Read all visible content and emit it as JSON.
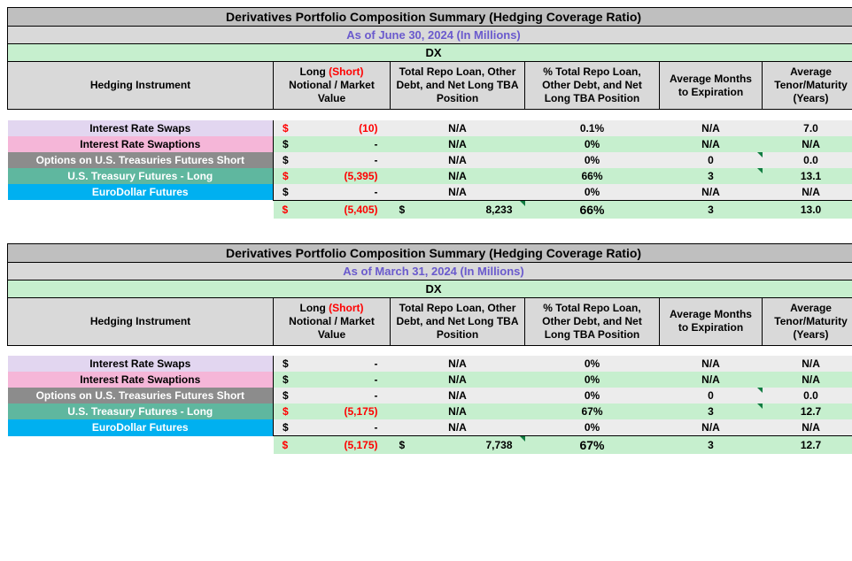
{
  "tables": [
    {
      "title": "Derivatives Portfolio Composition Summary (Hedging Coverage Ratio)",
      "date": "As of June 30, 2024 (In Millions)",
      "ticker": "DX",
      "headers": {
        "instrument": "Hedging Instrument",
        "notional_pre": "Long ",
        "notional_short": "(Short)",
        "notional_post": " Notional / Market Value",
        "total_repo": "Total Repo Loan, Other Debt, and Net Long  TBA Position",
        "pct_repo": "% Total Repo Loan, Other Debt, and Net Long TBA Position",
        "avg_months": "Average Months to Expiration",
        "avg_tenor": "Average Tenor/Maturity (Years)"
      },
      "rows": [
        {
          "label": "Interest Rate Swaps",
          "labelClass": "lavender",
          "notional_sym": "$",
          "notional_val": "(10)",
          "notional_red": true,
          "total_repo": "N/A",
          "pct": "0.1%",
          "months": "N/A",
          "tenor": "7.0",
          "alt": true
        },
        {
          "label": "Interest Rate Swaptions",
          "labelClass": "pink",
          "notional_sym": "$",
          "notional_val": "-",
          "notional_red": false,
          "total_repo": "N/A",
          "pct": "0%",
          "months": "N/A",
          "tenor": "N/A",
          "alt": false
        },
        {
          "label": "Options on U.S. Treasuries Futures Short",
          "labelClass": "gray",
          "notional_sym": "$",
          "notional_val": "-",
          "notional_red": false,
          "total_repo": "N/A",
          "pct": "0%",
          "months": "0",
          "tenor": "0.0",
          "alt": true,
          "tick_months": true,
          "tick_tenor": true
        },
        {
          "label": "U.S. Treasury Futures - Long",
          "labelClass": "teal",
          "notional_sym": "$",
          "notional_val": "(5,395)",
          "notional_red": true,
          "total_repo": "N/A",
          "pct": "66%",
          "months": "3",
          "tenor": "13.1",
          "alt": false,
          "tick_months": true
        },
        {
          "label": "EuroDollar Futures",
          "labelClass": "cyan",
          "notional_sym": "$",
          "notional_val": "-",
          "notional_red": false,
          "total_repo": "N/A",
          "pct": "0%",
          "months": "N/A",
          "tenor": "N/A",
          "alt": true
        }
      ],
      "total": {
        "notional_sym": "$",
        "notional_val": "(5,405)",
        "repo_sym": "$",
        "repo_val": "8,233",
        "pct": "66%",
        "months": "3",
        "tenor": "13.0",
        "tick_repo": true
      }
    },
    {
      "title": "Derivatives Portfolio Composition Summary (Hedging Coverage Ratio)",
      "date": "As of March 31, 2024 (In Millions)",
      "ticker": "DX",
      "headers": {
        "instrument": "Hedging Instrument",
        "notional_pre": "Long ",
        "notional_short": "(Short)",
        "notional_post": " Notional / Market Value",
        "total_repo": "Total Repo Loan, Other Debt, and Net Long  TBA Position",
        "pct_repo": "% Total Repo Loan, Other Debt, and Net Long TBA Position",
        "avg_months": "Average Months to Expiration",
        "avg_tenor": "Average Tenor/Maturity (Years)"
      },
      "rows": [
        {
          "label": "Interest Rate Swaps",
          "labelClass": "lavender",
          "notional_sym": "$",
          "notional_val": "-",
          "notional_red": false,
          "total_repo": "N/A",
          "pct": "0%",
          "months": "N/A",
          "tenor": "N/A",
          "alt": true
        },
        {
          "label": "Interest Rate Swaptions",
          "labelClass": "pink",
          "notional_sym": "$",
          "notional_val": "-",
          "notional_red": false,
          "total_repo": "N/A",
          "pct": "0%",
          "months": "N/A",
          "tenor": "N/A",
          "alt": false
        },
        {
          "label": "Options on U.S. Treasuries Futures Short",
          "labelClass": "gray",
          "notional_sym": "$",
          "notional_val": "-",
          "notional_red": false,
          "total_repo": "N/A",
          "pct": "0%",
          "months": "0",
          "tenor": "0.0",
          "alt": true,
          "tick_months": true,
          "tick_tenor": true
        },
        {
          "label": "U.S. Treasury Futures - Long",
          "labelClass": "teal",
          "notional_sym": "$",
          "notional_val": "(5,175)",
          "notional_red": true,
          "total_repo": "N/A",
          "pct": "67%",
          "months": "3",
          "tenor": "12.7",
          "alt": false,
          "tick_months": true
        },
        {
          "label": "EuroDollar Futures",
          "labelClass": "cyan",
          "notional_sym": "$",
          "notional_val": "-",
          "notional_red": false,
          "total_repo": "N/A",
          "pct": "0%",
          "months": "N/A",
          "tenor": "N/A",
          "alt": true
        }
      ],
      "total": {
        "notional_sym": "$",
        "notional_val": "(5,175)",
        "repo_sym": "$",
        "repo_val": "7,738",
        "pct": "67%",
        "months": "3",
        "tenor": "12.7",
        "tick_repo": true
      }
    }
  ],
  "colors": {
    "title_bg": "#bfbfbf",
    "date_bg": "#d9d9d9",
    "date_text": "#6a5acd",
    "green_bg": "#c6efce",
    "gray_alt": "#ececec",
    "red": "#ff0000"
  }
}
